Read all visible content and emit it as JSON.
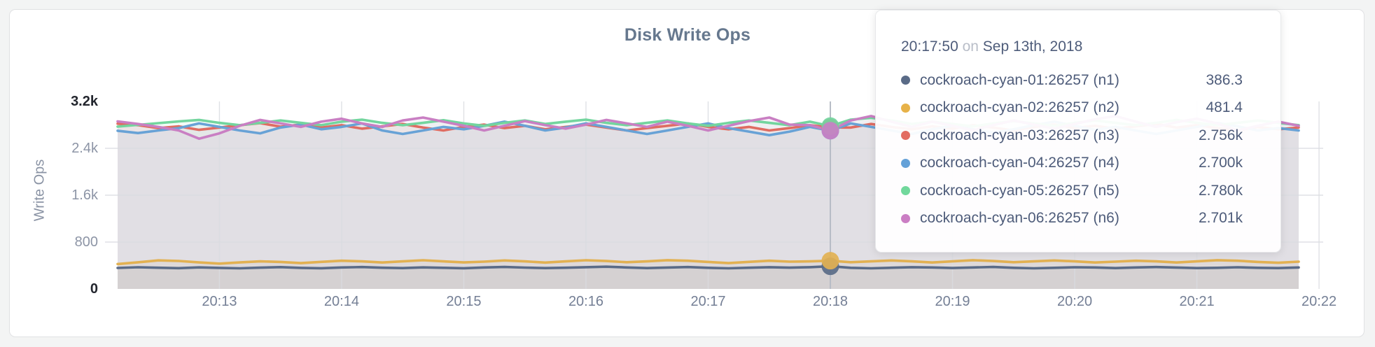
{
  "page": {
    "background": "#f3f4f4"
  },
  "card": {
    "background": "#ffffff",
    "border_color": "#e0e1e3"
  },
  "chart_data": {
    "type": "line",
    "title": "Disk Write Ops",
    "ylabel": "Write Ops",
    "ylim": [
      0,
      3200
    ],
    "grid": true,
    "legend_position": "tooltip",
    "yticks": [
      {
        "value": 0,
        "label": "0",
        "emph": true
      },
      {
        "value": 800,
        "label": "800",
        "emph": false
      },
      {
        "value": 1600,
        "label": "1.6k",
        "emph": false
      },
      {
        "value": 2400,
        "label": "2.4k",
        "emph": false
      },
      {
        "value": 3200,
        "label": "3.2k",
        "emph": true
      }
    ],
    "xticks": [
      "20:13",
      "20:14",
      "20:15",
      "20:16",
      "20:17",
      "20:18",
      "20:19",
      "20:20",
      "20:21",
      "20:22"
    ],
    "x_domain": {
      "start": "20:12:10",
      "end": "20:21:50",
      "interval_sec": 10
    },
    "hover_time": "20:17:50",
    "series": [
      {
        "name": "cockroach-cyan-01:26257 (n1)",
        "color": "#5a6b87",
        "values": [
          358,
          370,
          362,
          355,
          368,
          360,
          352,
          363,
          372,
          360,
          353,
          366,
          374,
          362,
          356,
          368,
          361,
          354,
          366,
          375,
          364,
          356,
          362,
          371,
          380,
          366,
          356,
          365,
          374,
          361,
          352,
          362,
          371,
          363,
          371,
          386.3,
          361,
          352,
          362,
          371,
          366,
          357,
          366,
          375,
          361,
          352,
          361,
          370,
          366,
          356,
          366,
          374,
          365,
          356,
          361,
          370,
          361,
          356,
          366
        ]
      },
      {
        "name": "cockroach-cyan-02:26257 (n2)",
        "color": "#e2b152",
        "values": [
          425,
          455,
          487,
          478,
          452,
          432,
          452,
          470,
          461,
          441,
          462,
          481,
          470,
          451,
          471,
          490,
          471,
          452,
          466,
          486,
          470,
          450,
          470,
          489,
          476,
          456,
          470,
          491,
          481,
          461,
          441,
          462,
          481,
          466,
          470,
          481.4,
          456,
          471,
          486,
          471,
          451,
          471,
          491,
          476,
          456,
          471,
          486,
          470,
          451,
          466,
          481,
          470,
          451,
          471,
          491,
          481,
          461,
          446,
          466
        ]
      },
      {
        "name": "cockroach-cyan-03:26257 (n3)",
        "color": "#df6c62",
        "values": [
          2820,
          2795,
          2745,
          2775,
          2715,
          2755,
          2795,
          2830,
          2770,
          2805,
          2755,
          2795,
          2735,
          2775,
          2815,
          2755,
          2705,
          2765,
          2805,
          2745,
          2785,
          2725,
          2765,
          2805,
          2755,
          2705,
          2745,
          2785,
          2825,
          2765,
          2725,
          2765,
          2705,
          2745,
          2795,
          2756,
          2755,
          2815,
          2765,
          2725,
          2775,
          2735,
          2795,
          2755,
          2705,
          2765,
          2805,
          2745,
          2785,
          2735,
          2775,
          2815,
          2755,
          2795,
          2745,
          2705,
          2765,
          2725,
          2755
        ]
      },
      {
        "name": "cockroach-cyan-04:26257 (n4)",
        "color": "#68a2d6",
        "values": [
          2700,
          2660,
          2705,
          2745,
          2825,
          2765,
          2705,
          2655,
          2755,
          2805,
          2725,
          2765,
          2825,
          2705,
          2645,
          2705,
          2765,
          2725,
          2785,
          2855,
          2785,
          2705,
          2755,
          2825,
          2765,
          2705,
          2645,
          2705,
          2765,
          2825,
          2745,
          2685,
          2625,
          2685,
          2765,
          2700,
          2825,
          2765,
          2705,
          2645,
          2725,
          2785,
          2725,
          2665,
          2725,
          2795,
          2855,
          2785,
          2715,
          2765,
          2705,
          2645,
          2705,
          2765,
          2835,
          2775,
          2705,
          2745,
          2705
        ]
      },
      {
        "name": "cockroach-cyan-05:26257 (n5)",
        "color": "#73d59e",
        "values": [
          2770,
          2800,
          2830,
          2860,
          2885,
          2835,
          2795,
          2835,
          2875,
          2835,
          2795,
          2855,
          2890,
          2835,
          2795,
          2835,
          2880,
          2825,
          2785,
          2835,
          2875,
          2815,
          2855,
          2890,
          2835,
          2795,
          2835,
          2875,
          2825,
          2785,
          2835,
          2875,
          2835,
          2795,
          2855,
          2780,
          2890,
          2920,
          2875,
          2815,
          2855,
          2815,
          2775,
          2825,
          2865,
          2825,
          2785,
          2835,
          2875,
          2835,
          2795,
          2835,
          2885,
          2835,
          2795,
          2835,
          2875,
          2835,
          2795
        ]
      },
      {
        "name": "cockroach-cyan-06:26257 (n6)",
        "color": "#c97fc3",
        "values": [
          2860,
          2815,
          2765,
          2705,
          2565,
          2655,
          2785,
          2885,
          2825,
          2765,
          2855,
          2905,
          2825,
          2765,
          2875,
          2925,
          2855,
          2785,
          2705,
          2785,
          2865,
          2795,
          2735,
          2805,
          2885,
          2825,
          2765,
          2855,
          2785,
          2705,
          2785,
          2865,
          2925,
          2805,
          2795,
          2701,
          2875,
          2950,
          2855,
          2765,
          2855,
          2785,
          2705,
          2795,
          2875,
          2805,
          2735,
          2815,
          2895,
          2950,
          2855,
          2765,
          2845,
          2905,
          2825,
          2705,
          2785,
          2855,
          2785
        ]
      }
    ]
  },
  "tooltip": {
    "time": "20:17:50",
    "separator": "on",
    "date": "Sep 13th, 2018",
    "rows": [
      {
        "label": "cockroach-cyan-01:26257 (n1)",
        "value": "386.3",
        "color": "#5a6b87"
      },
      {
        "label": "cockroach-cyan-02:26257 (n2)",
        "value": "481.4",
        "color": "#e7b249"
      },
      {
        "label": "cockroach-cyan-03:26257 (n3)",
        "value": "2.756k",
        "color": "#e26d62"
      },
      {
        "label": "cockroach-cyan-04:26257 (n4)",
        "value": "2.700k",
        "color": "#64a1d8"
      },
      {
        "label": "cockroach-cyan-05:26257 (n5)",
        "value": "2.780k",
        "color": "#71d89c"
      },
      {
        "label": "cockroach-cyan-06:26257 (n6)",
        "value": "2.701k",
        "color": "#cb7ec4"
      }
    ]
  }
}
